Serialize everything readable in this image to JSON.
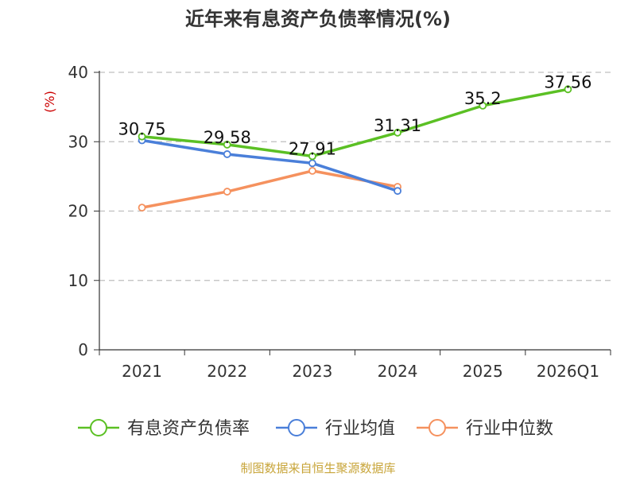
{
  "chart_data": {
    "type": "line",
    "title": "近年来有息资产负债率情况(%)",
    "ylabel": "(%)",
    "xlabel": "",
    "ylim": [
      0,
      40
    ],
    "yticks": [
      0,
      10,
      20,
      30,
      40
    ],
    "grid": true,
    "legend_position": "bottom",
    "categories": [
      "2021",
      "2022",
      "2023",
      "2024",
      "2025",
      "2026Q1"
    ],
    "series": [
      {
        "name": "有息资产负债率",
        "color": "#5bc024",
        "values": [
          30.75,
          29.58,
          27.91,
          31.31,
          35.2,
          37.56
        ],
        "labels": [
          "30.75",
          "29.58",
          "27.91",
          "31.31",
          "35.2",
          "37.56"
        ]
      },
      {
        "name": "行业均值",
        "color": "#4a7fd9",
        "values": [
          30.2,
          28.2,
          26.9,
          22.9,
          null,
          null
        ],
        "labels": []
      },
      {
        "name": "行业中位数",
        "color": "#f5915e",
        "values": [
          20.5,
          22.8,
          25.8,
          23.5,
          null,
          null
        ],
        "labels": []
      }
    ]
  },
  "source": "制图数据来自恒生聚源数据库"
}
